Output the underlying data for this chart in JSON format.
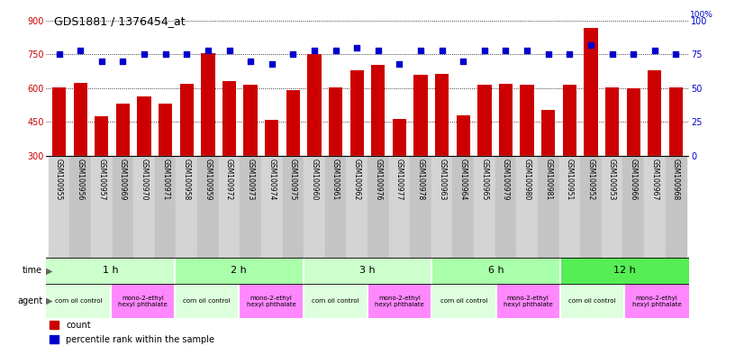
{
  "title": "GDS1881 / 1376454_at",
  "samples": [
    "GSM100955",
    "GSM100956",
    "GSM100957",
    "GSM100969",
    "GSM100970",
    "GSM100971",
    "GSM100958",
    "GSM100959",
    "GSM100972",
    "GSM100973",
    "GSM100974",
    "GSM100975",
    "GSM100960",
    "GSM100961",
    "GSM100962",
    "GSM100976",
    "GSM100977",
    "GSM100978",
    "GSM100963",
    "GSM100964",
    "GSM100965",
    "GSM100979",
    "GSM100980",
    "GSM100981",
    "GSM100951",
    "GSM100952",
    "GSM100953",
    "GSM100966",
    "GSM100967",
    "GSM100968"
  ],
  "counts": [
    605,
    625,
    475,
    530,
    565,
    530,
    620,
    755,
    630,
    615,
    460,
    590,
    750,
    605,
    680,
    705,
    465,
    660,
    665,
    480,
    615,
    620,
    615,
    505,
    615,
    870,
    605,
    600,
    680,
    605
  ],
  "percentiles": [
    75,
    78,
    70,
    70,
    75,
    75,
    75,
    78,
    78,
    70,
    68,
    75,
    78,
    78,
    80,
    78,
    68,
    78,
    78,
    70,
    78,
    78,
    78,
    75,
    75,
    82,
    75,
    75,
    78,
    75
  ],
  "bar_color": "#cc0000",
  "dot_color": "#0000cc",
  "ylim_left": [
    300,
    900
  ],
  "ylim_right": [
    0,
    100
  ],
  "yticks_left": [
    300,
    450,
    600,
    750,
    900
  ],
  "yticks_right": [
    0,
    25,
    50,
    75,
    100
  ],
  "time_groups": [
    {
      "label": "1 h",
      "start": 0,
      "end": 6,
      "color": "#ccffcc"
    },
    {
      "label": "2 h",
      "start": 6,
      "end": 12,
      "color": "#aaffaa"
    },
    {
      "label": "3 h",
      "start": 12,
      "end": 18,
      "color": "#ccffcc"
    },
    {
      "label": "6 h",
      "start": 18,
      "end": 24,
      "color": "#aaffaa"
    },
    {
      "label": "12 h",
      "start": 24,
      "end": 30,
      "color": "#55ee55"
    }
  ],
  "agent_groups": [
    {
      "label": "corn oil control",
      "start": 0,
      "end": 3,
      "color": "#ddffdd"
    },
    {
      "label": "mono-2-ethyl\nhexyl phthalate",
      "start": 3,
      "end": 6,
      "color": "#ff88ff"
    },
    {
      "label": "corn oil control",
      "start": 6,
      "end": 9,
      "color": "#ddffdd"
    },
    {
      "label": "mono-2-ethyl\nhexyl phthalate",
      "start": 9,
      "end": 12,
      "color": "#ff88ff"
    },
    {
      "label": "corn oil control",
      "start": 12,
      "end": 15,
      "color": "#ddffdd"
    },
    {
      "label": "mono-2-ethyl\nhexyl phthalate",
      "start": 15,
      "end": 18,
      "color": "#ff88ff"
    },
    {
      "label": "corn oil control",
      "start": 18,
      "end": 21,
      "color": "#ddffdd"
    },
    {
      "label": "mono-2-ethyl\nhexyl phthalate",
      "start": 21,
      "end": 24,
      "color": "#ff88ff"
    },
    {
      "label": "corn oil control",
      "start": 24,
      "end": 27,
      "color": "#ddffdd"
    },
    {
      "label": "mono-2-ethyl\nhexyl phthalate",
      "start": 27,
      "end": 30,
      "color": "#ff88ff"
    }
  ],
  "bg_color": "#ffffff",
  "axis_color_left": "#cc0000",
  "axis_color_right": "#0000cc",
  "label_col_even": "#d4d4d4",
  "label_col_odd": "#c4c4c4"
}
